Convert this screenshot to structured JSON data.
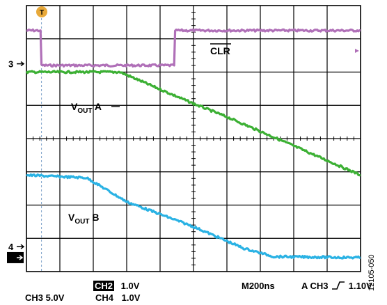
{
  "chart_data": {
    "type": "line",
    "title": "",
    "xlabel": "",
    "ylabel": "",
    "grid": true,
    "divisions": {
      "x": 10,
      "y": 8
    },
    "xlim": [
      0,
      10
    ],
    "ylim": [
      0,
      8
    ],
    "series": [
      {
        "name": "CLR",
        "color": "#b070b8",
        "x": [
          0,
          0.42,
          0.45,
          4.42,
          4.45,
          10
        ],
        "y": [
          7.25,
          7.25,
          6.2,
          6.2,
          7.25,
          7.25
        ]
      },
      {
        "name": "VOUT A",
        "color": "#3cb034",
        "x": [
          0,
          2.8,
          5.0,
          6.0,
          7.5,
          10
        ],
        "y": [
          6.0,
          6.0,
          5.05,
          4.65,
          4.0,
          2.9
        ]
      },
      {
        "name": "VOUT B",
        "color": "#2ab2e4",
        "x": [
          0,
          1.8,
          3.0,
          5.0,
          6.5,
          7.4,
          10
        ],
        "y": [
          2.9,
          2.82,
          2.1,
          1.35,
          0.7,
          0.45,
          0.42
        ]
      }
    ],
    "markers": [
      {
        "label": "3",
        "y": 6.25
      },
      {
        "label": "4",
        "y": 0.75
      },
      {
        "label": "2",
        "y": 0.42,
        "inverted": true
      }
    ],
    "trigger_marker": "T"
  },
  "labels": {
    "clr": "CLR",
    "vout_a_main": "V",
    "vout_a_sub": "OUT",
    "vout_a_suffix": " A",
    "vout_b_main": "V",
    "vout_b_sub": "OUT",
    "vout_b_suffix": " B"
  },
  "footer": {
    "ch3": "CH3 5.0V",
    "ch2_tag": "CH2",
    "ch2_val": "1.0V",
    "ch4": "CH4",
    "ch4_val": "1.0V",
    "timebase": "M200ns",
    "trigger": "A CH3",
    "trigger_level": "1.10V"
  },
  "figure_id": "12105-050"
}
